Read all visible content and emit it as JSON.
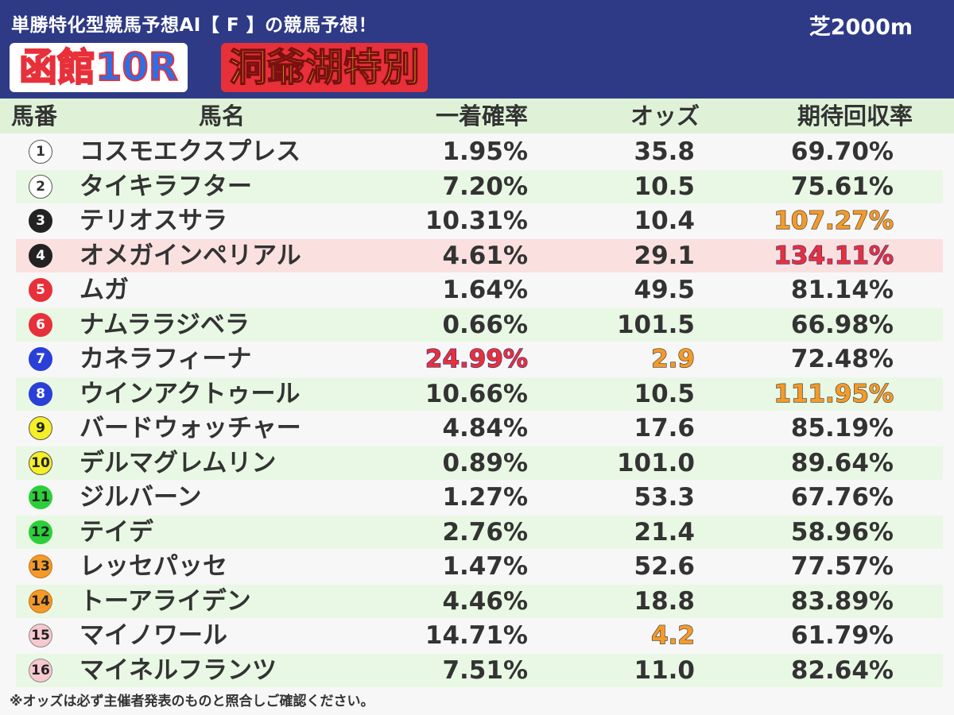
{
  "header": {
    "subtitle": "単勝特化型競馬予想AI【 F 】の競馬予想！",
    "course": "芝2000m",
    "venue": "函館10R",
    "race_name": "洞爺湖特別"
  },
  "columns": {
    "num": "馬番",
    "name": "馬名",
    "prob": "一着確率",
    "odds": "オッズ",
    "ret": "期待回収率"
  },
  "rows": [
    {
      "num": "1",
      "name": "コスモエクスプレス",
      "prob": "1.95%",
      "odds": "35.8",
      "ret": "69.70%",
      "frame_color": "#ffffff"
    },
    {
      "num": "2",
      "name": "タイキラフター",
      "prob": "7.20%",
      "odds": "10.5",
      "ret": "75.61%",
      "frame_color": "#ffffff"
    },
    {
      "num": "3",
      "name": "テリオスサラ",
      "prob": "10.31%",
      "odds": "10.4",
      "ret": "107.27%",
      "frame_color": "#222222"
    },
    {
      "num": "4",
      "name": "オメガインペリアル",
      "prob": "4.61%",
      "odds": "29.1",
      "ret": "134.11%",
      "frame_color": "#222222"
    },
    {
      "num": "5",
      "name": "ムガ",
      "prob": "1.64%",
      "odds": "49.5",
      "ret": "81.14%",
      "frame_color": "#e8303a"
    },
    {
      "num": "6",
      "name": "ナムララジベラ",
      "prob": "0.66%",
      "odds": "101.5",
      "ret": "66.98%",
      "frame_color": "#e8303a"
    },
    {
      "num": "7",
      "name": "カネラフィーナ",
      "prob": "24.99%",
      "odds": "2.9",
      "ret": "72.48%",
      "frame_color": "#2a3fd8"
    },
    {
      "num": "8",
      "name": "ウインアクトゥール",
      "prob": "10.66%",
      "odds": "10.5",
      "ret": "111.95%",
      "frame_color": "#2a3fd8"
    },
    {
      "num": "9",
      "name": "バードウォッチャー",
      "prob": "4.84%",
      "odds": "17.6",
      "ret": "85.19%",
      "frame_color": "#f5ef28"
    },
    {
      "num": "10",
      "name": "デルマグレムリン",
      "prob": "0.89%",
      "odds": "101.0",
      "ret": "89.64%",
      "frame_color": "#f5ef28"
    },
    {
      "num": "11",
      "name": "ジルバーン",
      "prob": "1.27%",
      "odds": "53.3",
      "ret": "67.76%",
      "frame_color": "#2ccf3a"
    },
    {
      "num": "12",
      "name": "テイデ",
      "prob": "2.76%",
      "odds": "21.4",
      "ret": "58.96%",
      "frame_color": "#2ccf3a"
    },
    {
      "num": "13",
      "name": "レッセパッセ",
      "prob": "1.47%",
      "odds": "52.6",
      "ret": "77.57%",
      "frame_color": "#f39a2a"
    },
    {
      "num": "14",
      "name": "トーアライデン",
      "prob": "4.46%",
      "odds": "18.8",
      "ret": "83.89%",
      "frame_color": "#f39a2a"
    },
    {
      "num": "15",
      "name": "マイノワール",
      "prob": "14.71%",
      "odds": "4.2",
      "ret": "61.79%",
      "frame_color": "#f7c8cf"
    },
    {
      "num": "16",
      "name": "マイネルフランツ",
      "prob": "7.51%",
      "odds": "11.0",
      "ret": "82.64%",
      "frame_color": "#f7c8cf"
    }
  ],
  "note": "※オッズは必ず主催者発表のものと照合しご確認ください。"
}
